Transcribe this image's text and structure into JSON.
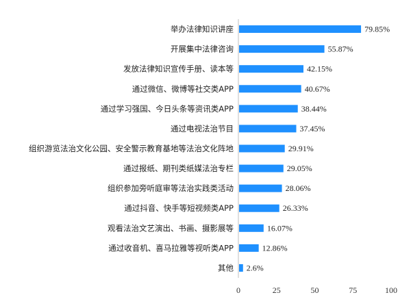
{
  "chart_data": {
    "type": "bar",
    "orientation": "horizontal",
    "categories": [
      "举办法律知识讲座",
      "开展集中法律咨询",
      "发放法律知识宣传手册、读本等",
      "通过微信、微博等社交类APP",
      "通过学习强国、今日头条等资讯类APP",
      "通过电视法治节目",
      "组织游览法治文化公园、安全警示教育基地等法治文化阵地",
      "通过报纸、期刊类纸媒法治专栏",
      "组织参加旁听庭审等法治实践类活动",
      "通过抖音、快手等短视频类APP",
      "观看法治文艺演出、书画、摄影展等",
      "通过收音机、喜马拉雅等视听类APP",
      "其他"
    ],
    "values": [
      79.85,
      55.87,
      42.15,
      40.67,
      38.44,
      37.45,
      29.91,
      29.05,
      28.06,
      26.33,
      16.07,
      12.86,
      2.6
    ],
    "value_labels": [
      "79.85%",
      "55.87%",
      "42.15%",
      "40.67%",
      "38.44%",
      "37.45%",
      "29.91%",
      "29.05%",
      "28.06%",
      "26.33%",
      "16.07%",
      "12.86%",
      "2.6%"
    ],
    "xlim": [
      0,
      100
    ],
    "xticks": [
      "0",
      "25",
      "50",
      "75",
      "100"
    ],
    "bar_color": "#1e90ff",
    "grid": false,
    "legend": "none"
  }
}
